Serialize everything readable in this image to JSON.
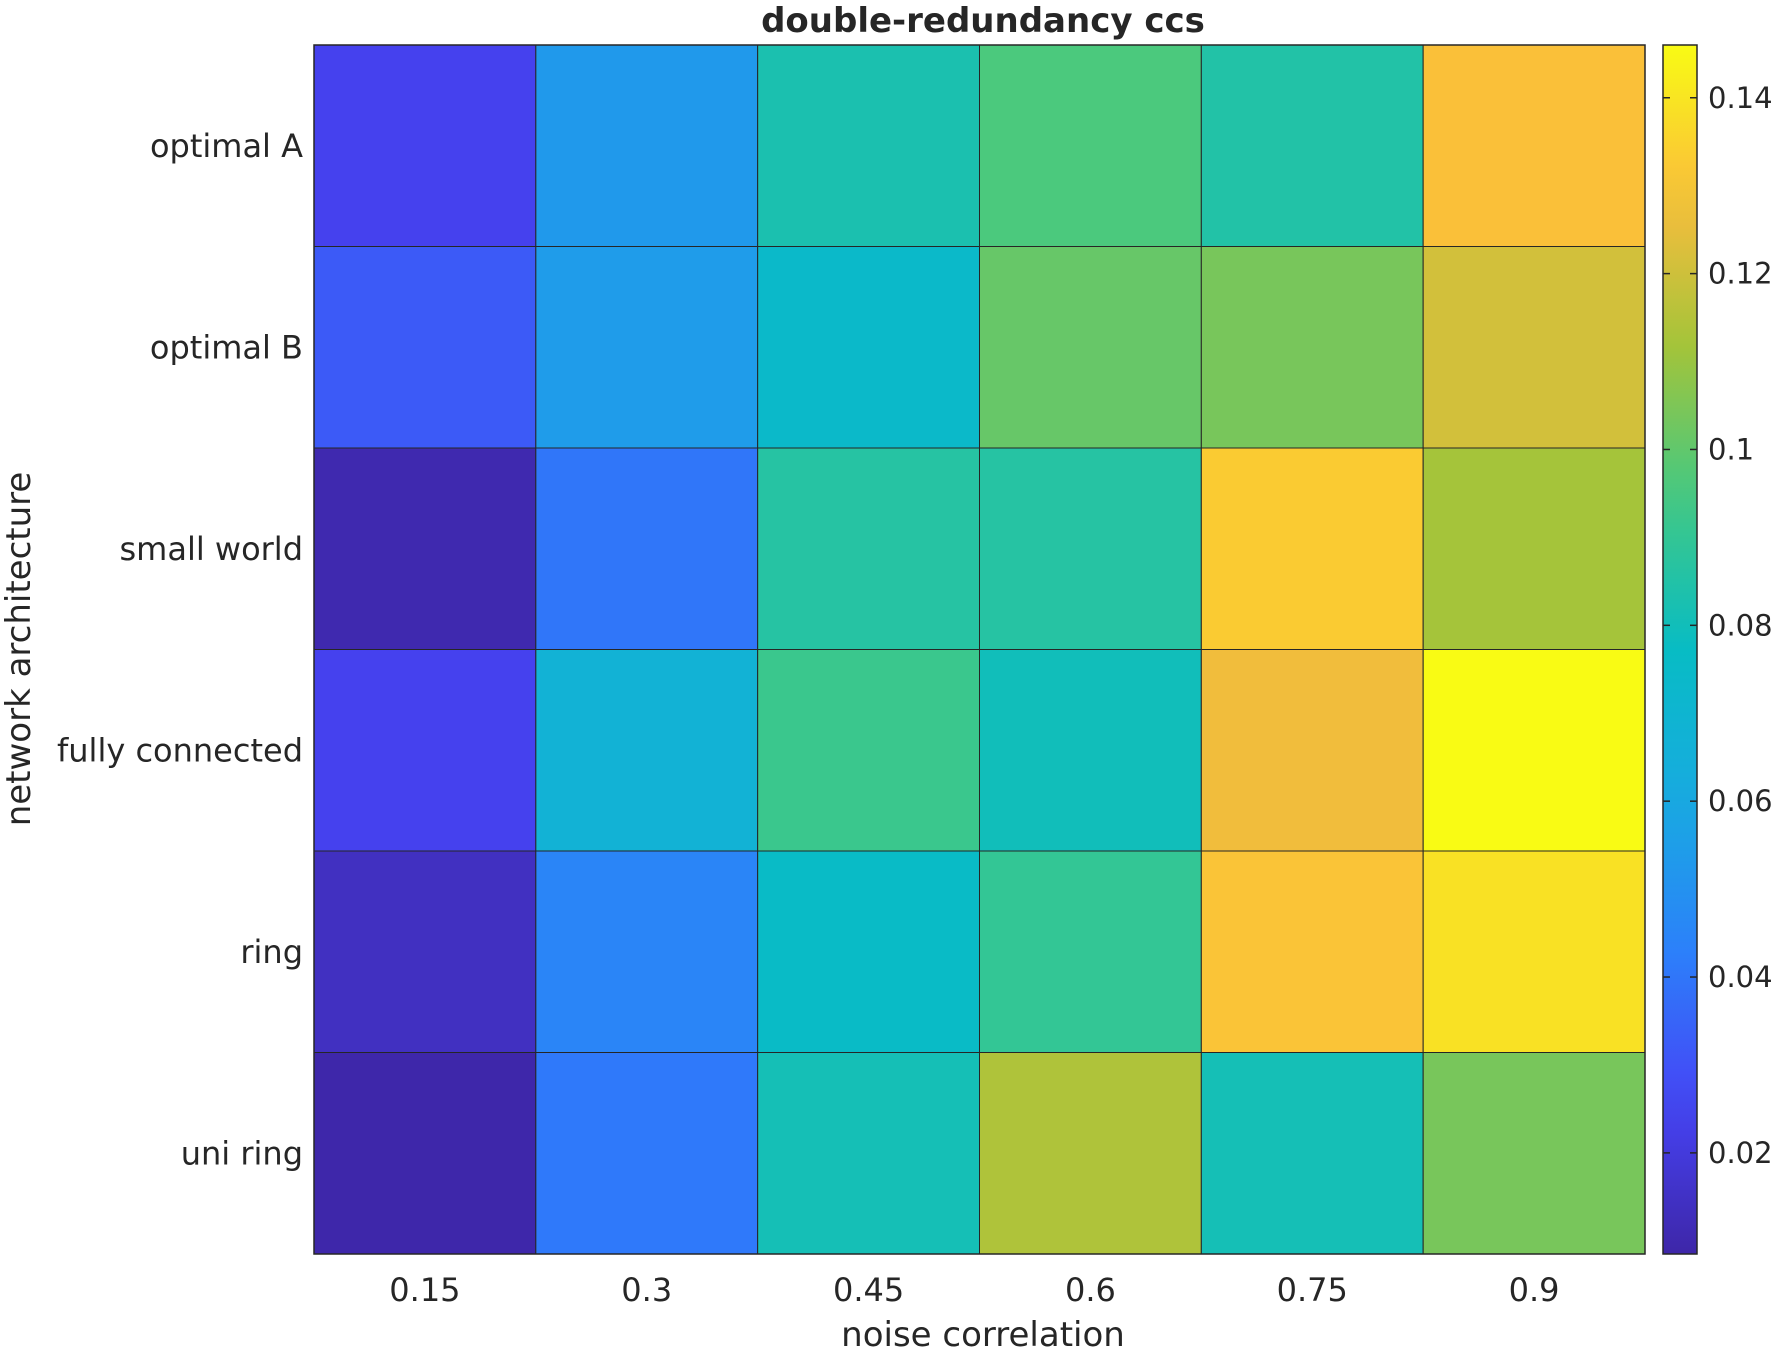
{
  "chart_data": {
    "type": "heatmap",
    "title": "double-redundancy ccs",
    "xlabel": "noise correlation",
    "ylabel": "network architecture",
    "x_categories": [
      "0.15",
      "0.3",
      "0.45",
      "0.6",
      "0.75",
      "0.9"
    ],
    "y_categories": [
      "optimal A",
      "optimal B",
      "small world",
      "fully connected",
      "ring",
      "uni ring"
    ],
    "values": [
      [
        0.024,
        0.053,
        0.083,
        0.096,
        0.085,
        0.13
      ],
      [
        0.032,
        0.054,
        0.074,
        0.101,
        0.104,
        0.121
      ],
      [
        0.01,
        0.04,
        0.086,
        0.086,
        0.133,
        0.112
      ],
      [
        0.024,
        0.067,
        0.092,
        0.08,
        0.127,
        0.146
      ],
      [
        0.014,
        0.045,
        0.076,
        0.09,
        0.131,
        0.139
      ],
      [
        0.009,
        0.041,
        0.081,
        0.114,
        0.081,
        0.104
      ]
    ],
    "colorbar": {
      "ticks": [
        "0.02",
        "0.04",
        "0.06",
        "0.08",
        "0.1",
        "0.12",
        "0.14"
      ],
      "tick_values": [
        0.02,
        0.04,
        0.06,
        0.08,
        0.1,
        0.12,
        0.14
      ],
      "range": [
        0.0085,
        0.146
      ],
      "colormap": "parula"
    },
    "grid": false
  }
}
